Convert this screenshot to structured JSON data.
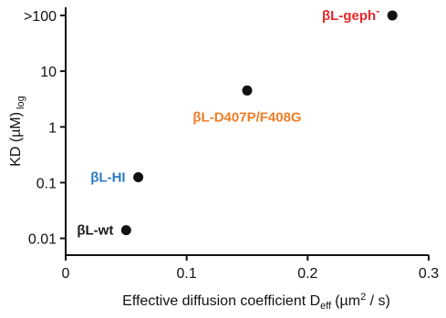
{
  "chart_data": {
    "type": "scatter",
    "title": "",
    "xlabel": "Effective diffusion coefficient D",
    "xlabel_sub": "eff",
    "xlabel_units": "(µm",
    "xlabel_units_sup": "2",
    "xlabel_units_end": " / s)",
    "ylabel": "KD (µM)",
    "ylabel_sub": "log",
    "x_scale": "linear",
    "y_scale": "log",
    "xlim": [
      0,
      0.3
    ],
    "ylim": [
      0.005,
      140
    ],
    "x_ticks": [
      {
        "value": 0,
        "label": "0"
      },
      {
        "value": 0.1,
        "label": "0.1"
      },
      {
        "value": 0.2,
        "label": "0.2"
      },
      {
        "value": 0.3,
        "label": "0.3"
      }
    ],
    "y_ticks": [
      {
        "value": 0.01,
        "label": "0.01"
      },
      {
        "value": 0.1,
        "label": "0.1"
      },
      {
        "value": 1,
        "label": "1"
      },
      {
        "value": 10,
        "label": "10"
      },
      {
        "value": 100,
        "label": ">100"
      }
    ],
    "grid": false,
    "points": [
      {
        "x": 0.27,
        "y": 100,
        "label": "βL-geph",
        "label_sup": "-",
        "color": "#e8262a",
        "label_side": "left"
      },
      {
        "x": 0.15,
        "y": 4.5,
        "label": "βL-D407P/F408G",
        "color": "#f07d27",
        "label_side": "below"
      },
      {
        "x": 0.06,
        "y": 0.125,
        "label": "βL-HI",
        "color": "#2b7cc0",
        "label_side": "left"
      },
      {
        "x": 0.05,
        "y": 0.014,
        "label": "βL-wt",
        "color": "#1a1a1a",
        "label_side": "left"
      }
    ],
    "marker_color": "#111111"
  }
}
